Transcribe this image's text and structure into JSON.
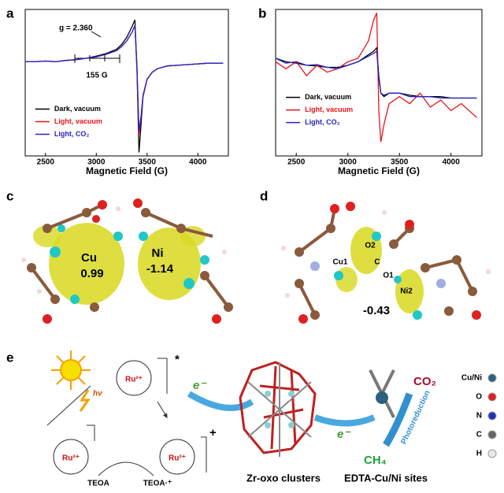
{
  "chart_data": [
    {
      "type": "line",
      "panel_label": "a",
      "xlabel": "Magnetic Field (G)",
      "x": [
        2300,
        2400,
        2500,
        2600,
        2700,
        2800,
        2900,
        3000,
        3100,
        3200,
        3250,
        3300,
        3350,
        3380,
        3400,
        3420,
        3440,
        3460,
        3500,
        3550,
        3600,
        3700,
        3800,
        3900,
        4000,
        4100,
        4250
      ],
      "series": [
        {
          "name": "Dark, vacuum",
          "color": "#000000",
          "values": [
            0.3,
            0.3,
            0.31,
            0.3,
            0.32,
            0.33,
            0.35,
            0.38,
            0.42,
            0.48,
            0.55,
            0.65,
            0.8,
            0.9,
            0.2,
            -1.0,
            -0.6,
            -0.2,
            0.05,
            0.15,
            0.2,
            0.24,
            0.25,
            0.26,
            0.27,
            0.28,
            0.28
          ]
        },
        {
          "name": "Light, vacuum",
          "color": "#e8141a",
          "values": [
            0.3,
            0.3,
            0.31,
            0.3,
            0.32,
            0.33,
            0.35,
            0.37,
            0.41,
            0.46,
            0.52,
            0.6,
            0.72,
            0.82,
            0.2,
            -0.75,
            -0.5,
            -0.2,
            0.05,
            0.15,
            0.2,
            0.24,
            0.25,
            0.26,
            0.27,
            0.28,
            0.28
          ]
        },
        {
          "name": "Light, CO₂",
          "color": "#2323c8",
          "values": [
            0.3,
            0.3,
            0.31,
            0.3,
            0.32,
            0.33,
            0.35,
            0.37,
            0.41,
            0.46,
            0.52,
            0.6,
            0.72,
            0.82,
            0.25,
            -0.7,
            -0.48,
            -0.18,
            0.05,
            0.15,
            0.2,
            0.24,
            0.25,
            0.26,
            0.27,
            0.28,
            0.28
          ]
        }
      ],
      "xlim": [
        2300,
        4300
      ],
      "xticks": [
        2500,
        3000,
        3500,
        4000
      ],
      "ylim": [
        -1.05,
        1.05
      ],
      "legend": "lower left",
      "annotations": [
        "g = 2.360",
        "155 G"
      ]
    },
    {
      "type": "line",
      "panel_label": "b",
      "xlabel": "Magnetic Field (G)",
      "x": [
        2300,
        2400,
        2500,
        2600,
        2700,
        2800,
        2900,
        3000,
        3100,
        3200,
        3250,
        3280,
        3300,
        3320,
        3350,
        3400,
        3500,
        3600,
        3700,
        3800,
        3900,
        4000,
        4100,
        4250
      ],
      "series": [
        {
          "name": "Dark, vacuum",
          "color": "#000000",
          "values": [
            0.35,
            0.3,
            0.28,
            0.25,
            0.24,
            0.22,
            0.22,
            0.25,
            0.3,
            0.4,
            0.45,
            0.5,
            0.1,
            -0.15,
            -0.2,
            -0.15,
            -0.15,
            -0.18,
            -0.2,
            -0.2,
            -0.2,
            -0.22,
            -0.22,
            -0.22
          ]
        },
        {
          "name": "Light, vacuum",
          "color": "#e8141a",
          "values": [
            0.3,
            0.2,
            0.3,
            0.1,
            0.25,
            0.15,
            0.2,
            0.3,
            0.35,
            0.6,
            0.9,
            1.0,
            -0.4,
            -0.85,
            -0.6,
            -0.3,
            -0.2,
            -0.3,
            -0.15,
            -0.35,
            -0.25,
            -0.4,
            -0.3,
            -0.5
          ]
        },
        {
          "name": "Light, CO₂",
          "color": "#2323c8",
          "values": [
            0.35,
            0.28,
            0.3,
            0.25,
            0.26,
            0.22,
            0.2,
            0.25,
            0.3,
            0.38,
            0.42,
            0.45,
            0.05,
            -0.15,
            -0.18,
            -0.15,
            -0.15,
            -0.2,
            -0.2,
            -0.2,
            -0.22,
            -0.22,
            -0.22,
            -0.22
          ]
        }
      ],
      "xlim": [
        2300,
        4300
      ],
      "xticks": [
        2500,
        3000,
        3500,
        4000
      ],
      "ylim": [
        -1.05,
        1.05
      ],
      "legend": "middle left"
    }
  ],
  "panel_c": {
    "label": "c",
    "atoms": [
      "Cu",
      "Ni"
    ],
    "charges": [
      "0.99",
      "-1.14"
    ]
  },
  "panel_d": {
    "label": "d",
    "atoms": [
      "O2",
      "Cu1",
      "C",
      "O1",
      "Ni2"
    ],
    "charge": "-0.43"
  },
  "panel_e": {
    "label": "e",
    "excited": "*",
    "light": "hν",
    "oxidized": "+",
    "complexes": [
      "Ru²⁺",
      "Ru²⁺",
      "Ru²⁺"
    ],
    "electron": [
      "e⁻",
      "e⁻"
    ],
    "donor": "TEOA",
    "donor_oxidized": "TEOA·⁺",
    "reactant": "CO₂",
    "product": "CH₄",
    "process": "Photoreduction",
    "captions": [
      "Zr-oxo clusters",
      "EDTA-Cu/Ni sites"
    ],
    "legend": [
      "Cu/Ni",
      "O",
      "N",
      "C",
      "H"
    ]
  }
}
